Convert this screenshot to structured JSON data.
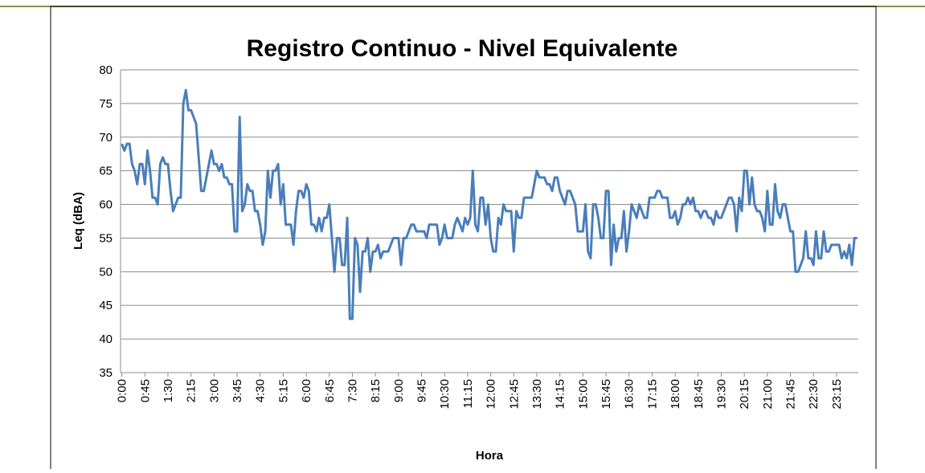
{
  "chart_data": {
    "type": "line",
    "title": "Registro Continuo - Nivel Equivalente",
    "x_label": "Hora",
    "y_label": "Leq (dBA)",
    "categories": [
      "0:00",
      null,
      null,
      null,
      null,
      null,
      null,
      null,
      null,
      "0:45",
      null,
      null,
      null,
      null,
      null,
      null,
      null,
      null,
      "1:30",
      null,
      null,
      null,
      null,
      null,
      null,
      null,
      null,
      "2:15",
      null,
      null,
      null,
      null,
      null,
      null,
      null,
      null,
      "3:00",
      null,
      null,
      null,
      null,
      null,
      null,
      null,
      null,
      "3:45",
      null,
      null,
      null,
      null,
      null,
      null,
      null,
      null,
      "4:30",
      null,
      null,
      null,
      null,
      null,
      null,
      null,
      null,
      "5:15",
      null,
      null,
      null,
      null,
      null,
      null,
      null,
      null,
      "6:00",
      null,
      null,
      null,
      null,
      null,
      null,
      null,
      null,
      "6:45",
      null,
      null,
      null,
      null,
      null,
      null,
      null,
      null,
      "7:30",
      null,
      null,
      null,
      null,
      null,
      null,
      null,
      null,
      "8:15",
      null,
      null,
      null,
      null,
      null,
      null,
      null,
      null,
      "9:00",
      null,
      null,
      null,
      null,
      null,
      null,
      null,
      null,
      "9:45",
      null,
      null,
      null,
      null,
      null,
      null,
      null,
      null,
      "10:30",
      null,
      null,
      null,
      null,
      null,
      null,
      null,
      null,
      "11:15",
      null,
      null,
      null,
      null,
      null,
      null,
      null,
      null,
      "12:00",
      null,
      null,
      null,
      null,
      null,
      null,
      null,
      null,
      "12:45",
      null,
      null,
      null,
      null,
      null,
      null,
      null,
      null,
      "13:30",
      null,
      null,
      null,
      null,
      null,
      null,
      null,
      null,
      "14:15",
      null,
      null,
      null,
      null,
      null,
      null,
      null,
      null,
      "15:00",
      null,
      null,
      null,
      null,
      null,
      null,
      null,
      null,
      "15:45",
      null,
      null,
      null,
      null,
      null,
      null,
      null,
      null,
      "16:30",
      null,
      null,
      null,
      null,
      null,
      null,
      null,
      null,
      "17:15",
      null,
      null,
      null,
      null,
      null,
      null,
      null,
      null,
      "18:00",
      null,
      null,
      null,
      null,
      null,
      null,
      null,
      null,
      "18:45",
      null,
      null,
      null,
      null,
      null,
      null,
      null,
      null,
      "19:30",
      null,
      null,
      null,
      null,
      null,
      null,
      null,
      null,
      "20:15",
      null,
      null,
      null,
      null,
      null,
      null,
      null,
      null,
      "21:00",
      null,
      null,
      null,
      null,
      null,
      null,
      null,
      null,
      "21:45",
      null,
      null,
      null,
      null,
      null,
      null,
      null,
      null,
      "22:30",
      null,
      null,
      null,
      null,
      null,
      null,
      null,
      null,
      "23:15",
      null,
      null,
      null,
      null,
      null,
      null,
      null,
      null
    ],
    "values": [
      69,
      68,
      69,
      69,
      66,
      65,
      63,
      66,
      66,
      63,
      68,
      65,
      61,
      61,
      60,
      66,
      67,
      66,
      66,
      62,
      59,
      60,
      61,
      61,
      75,
      77,
      74,
      74,
      73,
      72,
      67,
      62,
      62,
      64,
      66,
      68,
      66,
      66,
      65,
      66,
      64,
      64,
      63,
      63,
      56,
      56,
      73,
      59,
      60,
      63,
      62,
      62,
      59,
      59,
      57,
      54,
      56,
      65,
      61,
      65,
      65,
      66,
      60,
      63,
      57,
      57,
      57,
      54,
      59,
      62,
      62,
      61,
      63,
      62,
      57,
      57,
      56,
      58,
      56,
      58,
      58,
      60,
      55,
      50,
      55,
      55,
      51,
      51,
      58,
      43,
      43,
      55,
      54,
      47,
      53,
      53,
      55,
      50,
      53,
      53,
      54,
      52,
      53,
      53,
      53,
      54,
      55,
      55,
      55,
      51,
      55,
      55,
      56,
      57,
      57,
      56,
      56,
      56,
      56,
      55,
      57,
      57,
      57,
      57,
      54,
      55,
      57,
      55,
      55,
      55,
      57,
      58,
      57,
      56,
      58,
      57,
      58,
      65,
      57,
      56,
      61,
      61,
      57,
      60,
      55,
      53,
      53,
      58,
      57,
      60,
      59,
      59,
      59,
      53,
      59,
      58,
      58,
      61,
      61,
      61,
      61,
      63,
      65,
      64,
      64,
      64,
      63,
      63,
      62,
      64,
      64,
      62,
      61,
      60,
      62,
      62,
      61,
      60,
      56,
      56,
      56,
      60,
      53,
      52,
      60,
      60,
      58,
      55,
      55,
      62,
      62,
      51,
      57,
      53,
      55,
      55,
      59,
      53,
      56,
      60,
      59,
      58,
      60,
      59,
      58,
      58,
      61,
      61,
      61,
      62,
      62,
      61,
      61,
      61,
      58,
      58,
      59,
      57,
      58,
      60,
      60,
      61,
      60,
      61,
      59,
      59,
      58,
      59,
      59,
      58,
      58,
      57,
      59,
      58,
      58,
      59,
      60,
      61,
      61,
      60,
      56,
      61,
      59,
      65,
      65,
      60,
      64,
      60,
      59,
      59,
      58,
      56,
      62,
      57,
      57,
      63,
      59,
      58,
      60,
      60,
      58,
      56,
      56,
      50,
      50,
      51,
      52,
      56,
      52,
      52,
      51,
      56,
      52,
      52,
      56,
      53,
      53,
      54,
      54,
      54,
      54,
      52,
      53,
      52,
      54,
      51,
      55,
      55
    ],
    "color": "#4a7ebb",
    "ylim": [
      35,
      80
    ],
    "yticks": [
      35,
      40,
      45,
      50,
      55,
      60,
      65,
      70,
      75,
      80
    ],
    "grid": true
  }
}
